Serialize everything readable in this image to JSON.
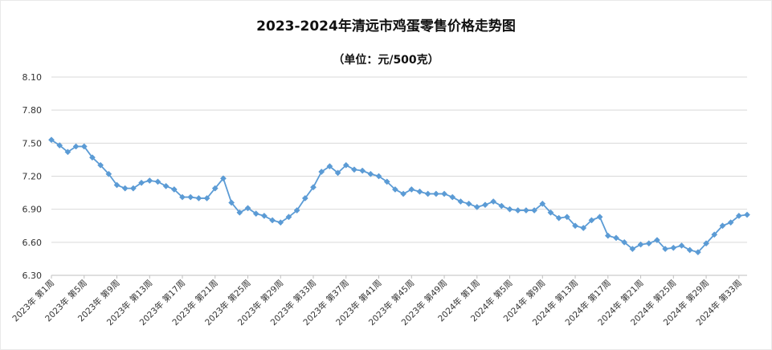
{
  "title": "2023-2024年清远市鸡蛋零售价格走势图",
  "subtitle": "（单位：元/500克）",
  "colors": {
    "series": "#5b9bd5",
    "grid": "#d9d9d9",
    "axis": "#bfbfbf",
    "text": "#333333"
  },
  "chart_data": {
    "type": "line",
    "title": "2023-2024年清远市鸡蛋零售价格走势图",
    "subtitle": "（单位：元/500克）",
    "xlabel": "",
    "ylabel": "",
    "ylim": [
      6.3,
      8.1
    ],
    "yticks": [
      "6.30",
      "6.60",
      "6.90",
      "7.20",
      "7.50",
      "7.80",
      "8.10"
    ],
    "grid": true,
    "legend": "none",
    "marker": "diamond",
    "xtick_labels": [
      {
        "index": 0,
        "label": "2023年 第1周"
      },
      {
        "index": 4,
        "label": "2023年 第5周"
      },
      {
        "index": 8,
        "label": "2023年 第9周"
      },
      {
        "index": 12,
        "label": "2023年 第13周"
      },
      {
        "index": 16,
        "label": "2023年 第17周"
      },
      {
        "index": 20,
        "label": "2023年 第21周"
      },
      {
        "index": 24,
        "label": "2023年 第25周"
      },
      {
        "index": 28,
        "label": "2023年 第29周"
      },
      {
        "index": 32,
        "label": "2023年 第33周"
      },
      {
        "index": 36,
        "label": "2023年 第37周"
      },
      {
        "index": 40,
        "label": "2023年 第41周"
      },
      {
        "index": 44,
        "label": "2023年 第45周"
      },
      {
        "index": 48,
        "label": "2023年 第49周"
      },
      {
        "index": 52,
        "label": "2024年 第1周"
      },
      {
        "index": 56,
        "label": "2024年 第5周"
      },
      {
        "index": 60,
        "label": "2024年 第9周"
      },
      {
        "index": 64,
        "label": "2024年 第13周"
      },
      {
        "index": 68,
        "label": "2024年 第17周"
      },
      {
        "index": 72,
        "label": "2024年 第21周"
      },
      {
        "index": 76,
        "label": "2024年 第25周"
      },
      {
        "index": 80,
        "label": "2024年 第29周"
      },
      {
        "index": 84,
        "label": "2024年 第33周"
      }
    ],
    "values": [
      7.53,
      7.48,
      7.42,
      7.47,
      7.47,
      7.37,
      7.3,
      7.22,
      7.12,
      7.09,
      7.09,
      7.14,
      7.16,
      7.15,
      7.11,
      7.08,
      7.01,
      7.01,
      7.0,
      7.0,
      7.09,
      7.18,
      6.96,
      6.87,
      6.91,
      6.86,
      6.84,
      6.8,
      6.78,
      6.83,
      6.89,
      7.0,
      7.1,
      7.24,
      7.29,
      7.23,
      7.3,
      7.26,
      7.25,
      7.22,
      7.2,
      7.15,
      7.08,
      7.04,
      7.08,
      7.06,
      7.04,
      7.04,
      7.04,
      7.01,
      6.97,
      6.95,
      6.92,
      6.94,
      6.97,
      6.93,
      6.9,
      6.89,
      6.89,
      6.89,
      6.95,
      6.87,
      6.82,
      6.83,
      6.75,
      6.73,
      6.8,
      6.83,
      6.66,
      6.64,
      6.6,
      6.54,
      6.58,
      6.59,
      6.62,
      6.54,
      6.55,
      6.57,
      6.53,
      6.51,
      6.59,
      6.67,
      6.75,
      6.78,
      6.84,
      6.85
    ]
  }
}
